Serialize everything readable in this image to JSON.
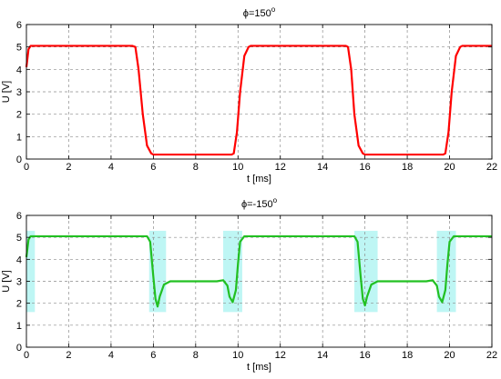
{
  "chart_data": [
    {
      "type": "line",
      "title_symbol": "ϕ",
      "title_value": "=150",
      "title_sup": "o",
      "xlabel": "t [ms]",
      "ylabel": "U [V]",
      "xlim": [
        0,
        22
      ],
      "ylim": [
        0,
        6
      ],
      "xticks": [
        0,
        2,
        4,
        6,
        8,
        10,
        12,
        14,
        16,
        18,
        20,
        22
      ],
      "yticks": [
        0,
        1,
        2,
        3,
        4,
        5,
        6
      ],
      "grid": true,
      "series": [
        {
          "color": "#ff0000",
          "x": [
            0,
            0.1,
            0.2,
            5.0,
            5.15,
            5.3,
            5.5,
            5.7,
            5.9,
            6.0,
            9.7,
            9.8,
            9.95,
            10.1,
            10.3,
            10.5,
            10.6,
            15.1,
            15.2,
            15.35,
            15.5,
            15.7,
            15.9,
            16.0,
            19.7,
            19.8,
            19.95,
            20.1,
            20.3,
            20.5,
            20.6,
            22
          ],
          "y": [
            4.1,
            4.9,
            5.05,
            5.05,
            5.0,
            4.0,
            2.0,
            0.6,
            0.25,
            0.2,
            0.2,
            0.25,
            1.2,
            3.0,
            4.6,
            5.0,
            5.05,
            5.05,
            5.0,
            4.0,
            2.0,
            0.6,
            0.25,
            0.2,
            0.2,
            0.25,
            1.2,
            3.0,
            4.6,
            5.0,
            5.05,
            5.05
          ]
        }
      ]
    },
    {
      "type": "line",
      "title_symbol": "ϕ",
      "title_value": "=-150",
      "title_sup": "o",
      "xlabel": "t [ms]",
      "ylabel": "U [V]",
      "xlim": [
        0,
        22
      ],
      "ylim": [
        0,
        6
      ],
      "xticks": [
        0,
        2,
        4,
        6,
        8,
        10,
        12,
        14,
        16,
        18,
        20,
        22
      ],
      "yticks": [
        0,
        1,
        2,
        3,
        4,
        5,
        6
      ],
      "grid": true,
      "highlight_color": "#b3f5f2",
      "highlight_ranges": [
        [
          0,
          0.4
        ],
        [
          5.8,
          6.6
        ],
        [
          9.3,
          10.2
        ],
        [
          15.5,
          16.6
        ],
        [
          19.4,
          20.3
        ]
      ],
      "series": [
        {
          "color": "#22c022",
          "x": [
            0,
            0.1,
            0.2,
            5.7,
            5.85,
            6.0,
            6.1,
            6.2,
            6.3,
            6.5,
            6.8,
            7.2,
            9.0,
            9.3,
            9.5,
            9.6,
            9.75,
            9.9,
            10.0,
            10.1,
            10.3,
            15.5,
            15.65,
            15.8,
            15.9,
            16.0,
            16.1,
            16.3,
            16.6,
            17.0,
            18.9,
            19.2,
            19.4,
            19.5,
            19.65,
            19.8,
            19.9,
            20.0,
            20.2,
            22
          ],
          "y": [
            4.1,
            4.9,
            5.05,
            5.05,
            4.8,
            3.2,
            2.2,
            1.85,
            2.3,
            2.85,
            3.0,
            3.0,
            3.0,
            3.05,
            2.8,
            2.3,
            2.05,
            2.6,
            3.8,
            4.8,
            5.05,
            5.05,
            4.8,
            3.2,
            2.2,
            1.9,
            2.3,
            2.85,
            3.0,
            3.0,
            3.0,
            3.05,
            2.8,
            2.3,
            2.05,
            2.6,
            3.8,
            4.8,
            5.05,
            5.05
          ]
        }
      ]
    }
  ]
}
